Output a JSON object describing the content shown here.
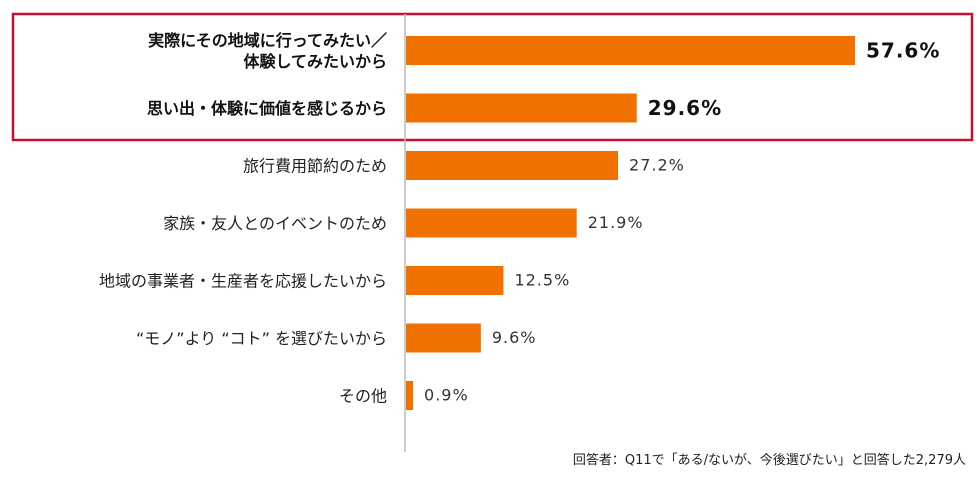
{
  "chart_data": {
    "type": "bar",
    "orientation": "horizontal",
    "categories": [
      [
        "実際にその地域に行ってみたい／",
        "体験してみたいから"
      ],
      [
        "思い出・体験に価値を感じるから"
      ],
      [
        "旅行費用節約のため"
      ],
      [
        "家族・友人とのイベントのため"
      ],
      [
        "地域の事業者・生産者を応援したいから"
      ],
      [
        "“モノ”より “コト” を選びたいから"
      ],
      [
        "その他"
      ]
    ],
    "values": [
      57.6,
      29.6,
      27.2,
      21.9,
      12.5,
      9.6,
      0.9
    ],
    "value_labels": [
      "57.6%",
      "29.6%",
      "27.2%",
      "21.9%",
      "12.5%",
      "9.6%",
      "0.9%"
    ],
    "highlighted_indices": [
      0,
      1
    ],
    "xlim": [
      0,
      63
    ],
    "grid": false,
    "legend": "none"
  },
  "colors": {
    "bar": "#f07000",
    "highlight_border": "#c8102e",
    "axis": "#bbbbbb"
  },
  "footnote": "回答者：Q11で「ある/ないが、今後選びたい」と回答した2,279人"
}
